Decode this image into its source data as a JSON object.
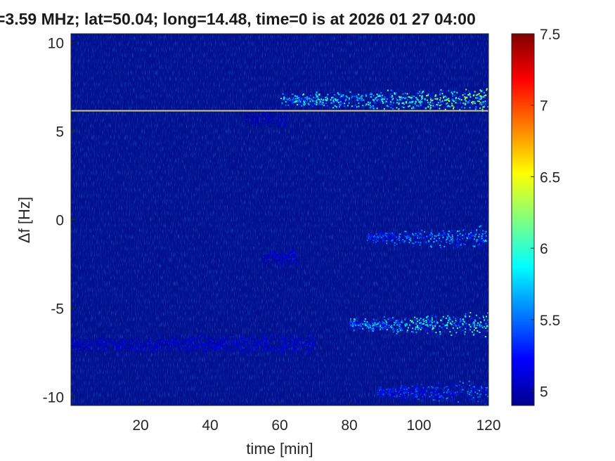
{
  "chart_data": {
    "type": "heatmap",
    "title": "=3.59 MHz;  lat=50.04; long=14.48, time=0 is at 2026 01 27 04:00",
    "xlabel": "time [min]",
    "ylabel": "Δf [Hz]",
    "xlim": [
      0,
      120
    ],
    "ylim": [
      -10.5,
      10.5
    ],
    "xticks": [
      20,
      40,
      60,
      80,
      100,
      120
    ],
    "yticks": [
      10,
      5,
      0,
      -5,
      -10
    ],
    "colorbar": {
      "range": [
        4.9,
        7.5
      ],
      "ticks": [
        "7.5",
        "7",
        "6.5",
        "6",
        "5.5",
        "5"
      ]
    },
    "carrier_line": {
      "y": 6.15
    },
    "traces": [
      {
        "y": 6.8,
        "x_start": 60,
        "x_end": 120,
        "peak": 6.5
      },
      {
        "y": 5.8,
        "x_start": 50,
        "x_end": 62,
        "peak": 5.2
      },
      {
        "y": -1.0,
        "x_start": 85,
        "x_end": 120,
        "peak": 5.9
      },
      {
        "y": -2.1,
        "x_start": 55,
        "x_end": 65,
        "peak": 5.3
      },
      {
        "y": -5.9,
        "x_start": 80,
        "x_end": 120,
        "peak": 6.3
      },
      {
        "y": -7.0,
        "x_start": 0,
        "x_end": 70,
        "peak": 5.3
      },
      {
        "y": -9.7,
        "x_start": 88,
        "x_end": 120,
        "peak": 5.7
      }
    ]
  }
}
